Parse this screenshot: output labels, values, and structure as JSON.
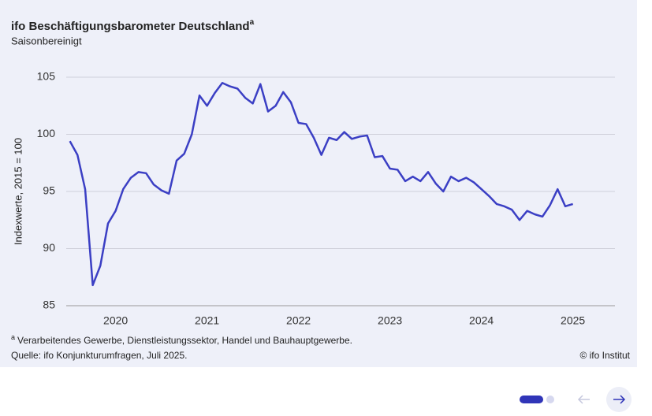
{
  "chart_data": {
    "type": "line",
    "title": "ifo Beschäftigungsbarometer Deutschland",
    "title_note": "a",
    "subtitle": "Saisonbereinigt",
    "y_label": "Indexwerte, 2015 = 100",
    "footnote": {
      "marker": "a",
      "text": "Verarbeitendes Gewerbe, Dienstleistungssektor, Handel und Bauhauptgewerbe."
    },
    "source": "Quelle: ifo Konjunkturumfragen, Juli 2025.",
    "copyright": "© ifo Institut",
    "color": "#3b3fc4",
    "grid": true,
    "x": [
      2020,
      2020.083,
      2020.167,
      2020.25,
      2020.333,
      2020.417,
      2020.5,
      2020.583,
      2020.667,
      2020.75,
      2020.833,
      2020.917,
      2021,
      2021.083,
      2021.167,
      2021.25,
      2021.333,
      2021.417,
      2021.5,
      2021.583,
      2021.667,
      2021.75,
      2021.833,
      2021.917,
      2022,
      2022.083,
      2022.167,
      2022.25,
      2022.333,
      2022.417,
      2022.5,
      2022.583,
      2022.667,
      2022.75,
      2022.833,
      2022.917,
      2023,
      2023.083,
      2023.167,
      2023.25,
      2023.333,
      2023.417,
      2023.5,
      2023.583,
      2023.667,
      2023.75,
      2023.833,
      2023.917,
      2024,
      2024.083,
      2024.167,
      2024.25,
      2024.333,
      2024.417,
      2024.5,
      2024.583,
      2024.667,
      2024.75,
      2024.833,
      2024.917,
      2025,
      2025.083,
      2025.167,
      2025.25,
      2025.333,
      2025.417,
      2025.5
    ],
    "values": [
      99.4,
      98.2,
      95.2,
      86.8,
      88.5,
      92.2,
      93.3,
      95.2,
      96.2,
      96.7,
      96.6,
      95.6,
      95.1,
      94.8,
      97.7,
      98.3,
      100.0,
      103.4,
      102.5,
      103.6,
      104.5,
      104.2,
      104.0,
      103.2,
      102.7,
      104.4,
      102.0,
      102.5,
      103.7,
      102.8,
      101.0,
      100.9,
      99.7,
      98.2,
      99.7,
      99.5,
      100.2,
      99.6,
      99.8,
      99.9,
      98.0,
      98.1,
      97.0,
      96.9,
      95.9,
      96.3,
      95.9,
      96.7,
      95.7,
      95.0,
      96.3,
      95.9,
      96.2,
      95.8,
      95.2,
      94.6,
      93.9,
      93.7,
      93.4,
      92.5,
      93.3,
      93.0,
      92.8,
      93.8,
      95.2,
      93.7,
      93.9
    ],
    "xlim": [
      2019.96,
      2025.96
    ],
    "xticks": [
      {
        "value": 2020.5,
        "label": "2020"
      },
      {
        "value": 2021.5,
        "label": "2021"
      },
      {
        "value": 2022.5,
        "label": "2022"
      },
      {
        "value": 2023.5,
        "label": "2023"
      },
      {
        "value": 2024.5,
        "label": "2024"
      },
      {
        "value": 2025.5,
        "label": "2025"
      }
    ],
    "ylim": [
      85,
      105
    ],
    "yticks": [
      85,
      90,
      95,
      100,
      105
    ]
  }
}
